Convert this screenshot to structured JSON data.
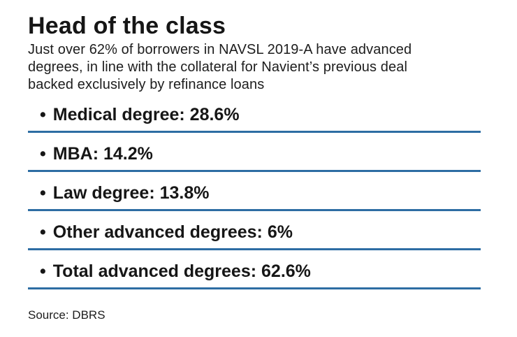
{
  "header": {
    "title": "Head of the class",
    "subtitle_lines": [
      "Just over 62% of borrowers in NAVSL 2019-A have advanced",
      "degrees, in line with the collateral for Navient’s previous deal",
      "backed exclusively by refinance loans"
    ]
  },
  "list": {
    "bullet_char": "•",
    "items": [
      {
        "label": "Medical degree",
        "value": "28.6%",
        "text": "Medical degree: 28.6%"
      },
      {
        "label": "MBA",
        "value": "14.2%",
        "text": "MBA: 14.2%"
      },
      {
        "label": "Law degree",
        "value": "13.8%",
        "text": "Law degree: 13.8%"
      },
      {
        "label": "Other advanced degrees",
        "value": "6%",
        "text": "Other advanced degrees: 6%"
      },
      {
        "label": "Total advanced degrees",
        "value": "62.6%",
        "text": "Total advanced degrees: 62.6%"
      }
    ]
  },
  "footer": {
    "source": "Source: DBRS"
  },
  "colors": {
    "divider_blue": "#2d6da3",
    "text": "#161616",
    "background": "#ffffff"
  },
  "chart_data": {
    "type": "table",
    "title": "Head of the class",
    "subtitle": "Just over 62% of borrowers in NAVSL 2019-A have advanced degrees, in line with the collateral for Navient’s previous deal backed exclusively by refinance loans",
    "categories": [
      "Medical degree",
      "MBA",
      "Law degree",
      "Other advanced degrees",
      "Total advanced degrees"
    ],
    "values": [
      28.6,
      14.2,
      13.8,
      6,
      62.6
    ],
    "unit": "%",
    "source": "Source: DBRS",
    "layout": {
      "legend": false,
      "grid": false,
      "style": "bulleted list with horizontal rules"
    }
  }
}
